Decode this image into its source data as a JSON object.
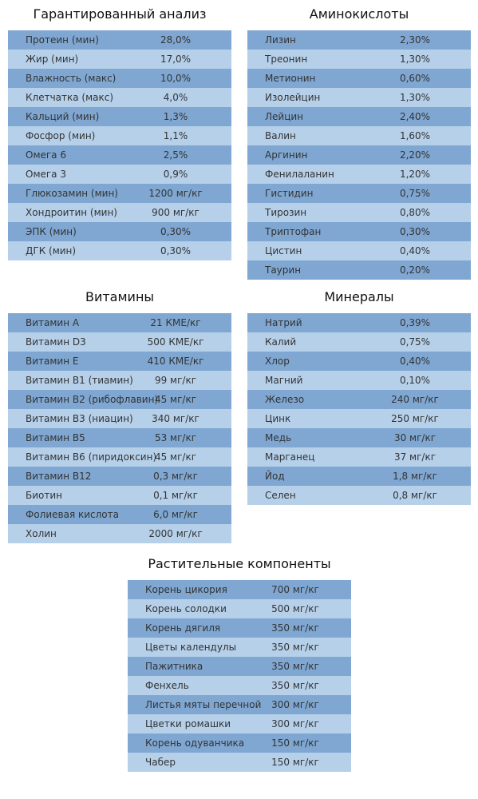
{
  "sections": [
    {
      "title": "Гарантированный анализ",
      "rows": [
        [
          "Протеин (мин)",
          "28,0%"
        ],
        [
          "Жир (мин)",
          "17,0%"
        ],
        [
          "Влажность (макс)",
          "10,0%"
        ],
        [
          "Клетчатка (макс)",
          "4,0%"
        ],
        [
          "Кальций (мин)",
          "1,3%"
        ],
        [
          "Фосфор (мин)",
          "1,1%"
        ],
        [
          "Омега 6",
          "2,5%"
        ],
        [
          "Омега 3",
          "0,9%"
        ],
        [
          "Глюкозамин (мин)",
          "1200 мг/кг"
        ],
        [
          "Хондроитин (мин)",
          "900 мг/кг"
        ],
        [
          "ЭПК (мин)",
          "0,30%"
        ],
        [
          "ДГК (мин)",
          "0,30%"
        ]
      ]
    },
    {
      "title": "Аминокислоты",
      "rows": [
        [
          "Лизин",
          "2,30%"
        ],
        [
          "Треонин",
          "1,30%"
        ],
        [
          "Метионин",
          "0,60%"
        ],
        [
          "Изолейцин",
          "1,30%"
        ],
        [
          "Лейцин",
          "2,40%"
        ],
        [
          "Валин",
          "1,60%"
        ],
        [
          "Аргинин",
          "2,20%"
        ],
        [
          "Фенилаланин",
          "1,20%"
        ],
        [
          "Гистидин",
          "0,75%"
        ],
        [
          "Тирозин",
          "0,80%"
        ],
        [
          "Триптофан",
          "0,30%"
        ],
        [
          "Цистин",
          "0,40%"
        ],
        [
          "Таурин",
          "0,20%"
        ]
      ]
    },
    {
      "title": "Витамины",
      "rows": [
        [
          "Витамин A",
          "21 КМЕ/кг"
        ],
        [
          "Витамин D3",
          "500 КМЕ/кг"
        ],
        [
          "Витамин E",
          "410 КМЕ/кг"
        ],
        [
          "Витамин B1 (тиамин)",
          "99 мг/кг"
        ],
        [
          "Витамин B2 (рибофлавин)",
          "45 мг/кг"
        ],
        [
          "Витамин B3 (ниацин)",
          "340 мг/кг"
        ],
        [
          "Витамин B5",
          "53 мг/кг"
        ],
        [
          "Витамин B6 (пиридоксин)",
          "45 мг/кг"
        ],
        [
          "Витамин B12",
          "0,3 мг/кг"
        ],
        [
          "Биотин",
          "0,1 мг/кг"
        ],
        [
          "Фолиевая кислота",
          "6,0 мг/кг"
        ],
        [
          "Холин",
          "2000 мг/кг"
        ]
      ]
    },
    {
      "title": "Минералы",
      "rows": [
        [
          "Натрий",
          "0,39%"
        ],
        [
          "Калий",
          "0,75%"
        ],
        [
          "Хлор",
          "0,40%"
        ],
        [
          "Магний",
          "0,10%"
        ],
        [
          "Железо",
          "240 мг/кг"
        ],
        [
          "Цинк",
          "250 мг/кг"
        ],
        [
          "Медь",
          "30 мг/кг"
        ],
        [
          "Марганец",
          "37 мг/кг"
        ],
        [
          "Йод",
          "1,8 мг/кг"
        ],
        [
          "Селен",
          "0,8 мг/кг"
        ]
      ]
    },
    {
      "title": "Растительные компоненты",
      "rows": [
        [
          "Корень цикория",
          "700 мг/кг"
        ],
        [
          "Корень солодки",
          "500 мг/кг"
        ],
        [
          "Корень дягиля",
          "350 мг/кг"
        ],
        [
          "Цветы календулы",
          "350 мг/кг"
        ],
        [
          "Пажитника",
          "350 мг/кг"
        ],
        [
          "Фенхель",
          "350 мг/кг"
        ],
        [
          "Листья мяты перечной",
          "300 мг/кг"
        ],
        [
          "Цветки ромашки",
          "300 мг/кг"
        ],
        [
          "Корень одуванчика",
          "150 мг/кг"
        ],
        [
          "Чабер",
          "150 мг/кг"
        ]
      ]
    }
  ]
}
